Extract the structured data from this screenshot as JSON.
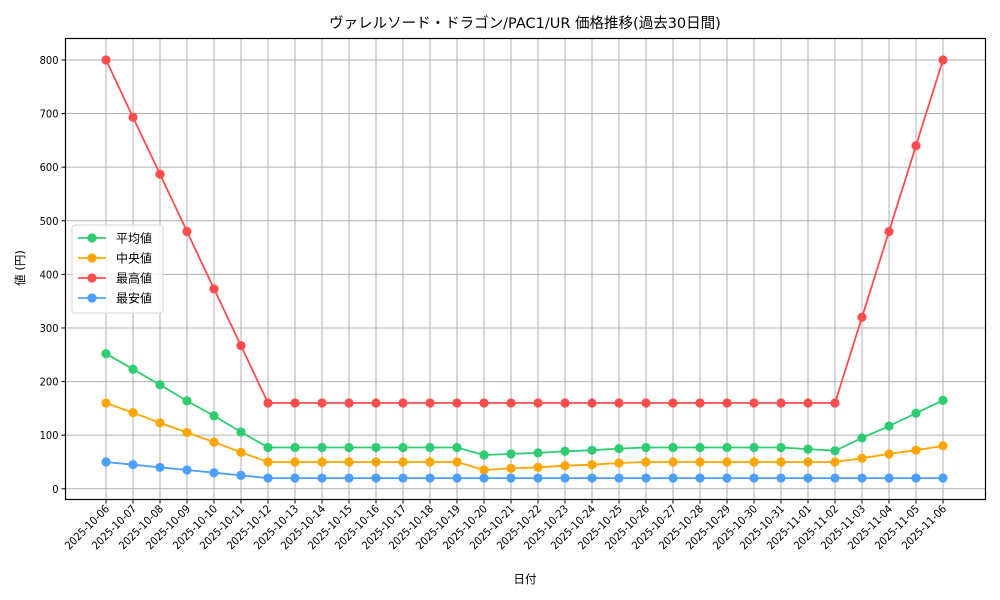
{
  "chart_data": {
    "type": "line",
    "title": "ヴァレルソード・ドラゴン/PAC1/UR 価格推移(過去30日間)",
    "xlabel": "日付",
    "ylabel": "値 (円)",
    "ylim": [
      -20,
      840
    ],
    "yticks": [
      0,
      100,
      200,
      300,
      400,
      500,
      600,
      700,
      800
    ],
    "grid": true,
    "legend_position": "center left",
    "x": [
      "2025-10-06",
      "2025-10-07",
      "2025-10-08",
      "2025-10-09",
      "2025-10-10",
      "2025-10-11",
      "2025-10-12",
      "2025-10-13",
      "2025-10-14",
      "2025-10-15",
      "2025-10-16",
      "2025-10-17",
      "2025-10-18",
      "2025-10-19",
      "2025-10-20",
      "2025-10-21",
      "2025-10-22",
      "2025-10-23",
      "2025-10-24",
      "2025-10-25",
      "2025-10-26",
      "2025-10-27",
      "2025-10-28",
      "2025-10-29",
      "2025-10-30",
      "2025-10-31",
      "2025-11-01",
      "2025-11-02",
      "2025-11-03",
      "2025-11-04",
      "2025-11-05",
      "2025-11-06"
    ],
    "series": [
      {
        "name": "平均値",
        "color": "#2ecc71",
        "values": [
          252,
          223,
          194,
          164,
          136,
          106,
          77,
          77,
          77,
          77,
          77,
          77,
          77,
          77,
          63,
          65,
          67,
          70,
          72,
          75,
          77,
          77,
          77,
          77,
          77,
          77,
          74,
          71,
          95,
          117,
          141,
          165
        ]
      },
      {
        "name": "中央値",
        "color": "#ffa500",
        "values": [
          160,
          142,
          123,
          105,
          87,
          68,
          50,
          50,
          50,
          50,
          50,
          50,
          50,
          50,
          35,
          38,
          40,
          43,
          45,
          48,
          50,
          50,
          50,
          50,
          50,
          50,
          50,
          50,
          57,
          65,
          72,
          80
        ]
      },
      {
        "name": "最高値",
        "color": "#ff4d4d",
        "values": [
          800,
          693,
          587,
          480,
          373,
          267,
          160,
          160,
          160,
          160,
          160,
          160,
          160,
          160,
          160,
          160,
          160,
          160,
          160,
          160,
          160,
          160,
          160,
          160,
          160,
          160,
          160,
          160,
          320,
          480,
          640,
          800
        ]
      },
      {
        "name": "最安値",
        "color": "#4d9fff",
        "values": [
          50,
          45,
          40,
          35,
          30,
          25,
          20,
          20,
          20,
          20,
          20,
          20,
          20,
          20,
          20,
          20,
          20,
          20,
          20,
          20,
          20,
          20,
          20,
          20,
          20,
          20,
          20,
          20,
          20,
          20,
          20,
          20
        ]
      }
    ]
  }
}
